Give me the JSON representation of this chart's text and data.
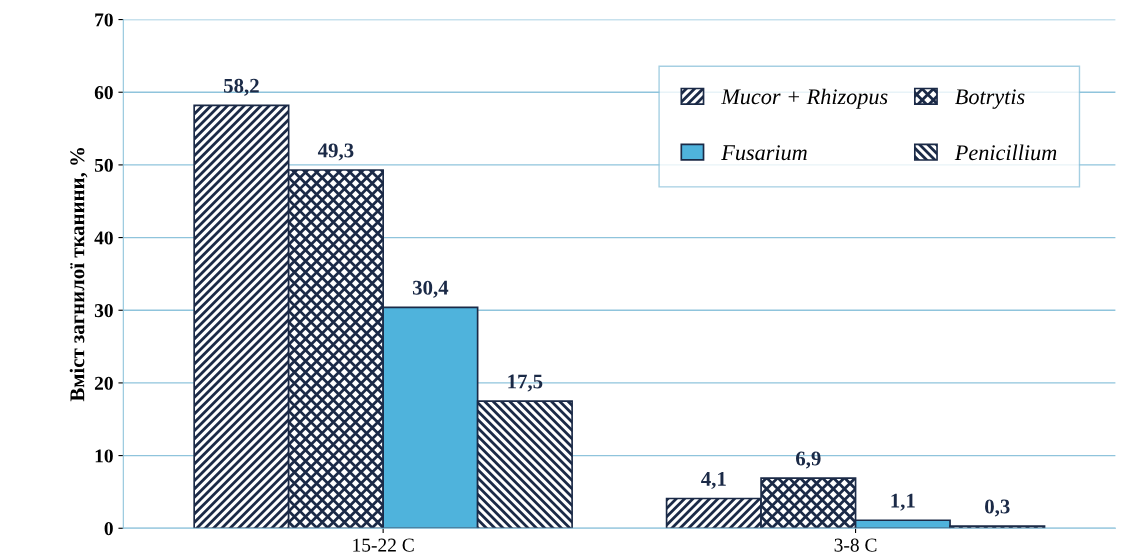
{
  "chart_data": {
    "type": "bar",
    "ylabel": "Вміст загнилої тканини, %",
    "categories": [
      "15-22 C",
      "3-8 C"
    ],
    "series": [
      {
        "name": "Mucor + Rhizopus",
        "color": "#1b2a47",
        "values": [
          58.2,
          4.1
        ],
        "value_labels": [
          "58,2",
          "4,1"
        ]
      },
      {
        "name": "Botrytis",
        "color": "#1b2a47",
        "values": [
          49.3,
          6.9
        ],
        "value_labels": [
          "49,3",
          "6,9"
        ]
      },
      {
        "name": "Fusarium",
        "color": "#4fb3dc",
        "values": [
          30.4,
          1.1
        ],
        "value_labels": [
          "30,4",
          "1,1"
        ]
      },
      {
        "name": "Penicillium",
        "color": "#1b2a47",
        "values": [
          17.5,
          0.3
        ],
        "value_labels": [
          "17,5",
          "0,3"
        ]
      }
    ],
    "ylim": [
      0,
      70
    ],
    "yticks": [
      0,
      10,
      20,
      30,
      40,
      50,
      60,
      70
    ],
    "grid": "y",
    "legend": "top right"
  }
}
